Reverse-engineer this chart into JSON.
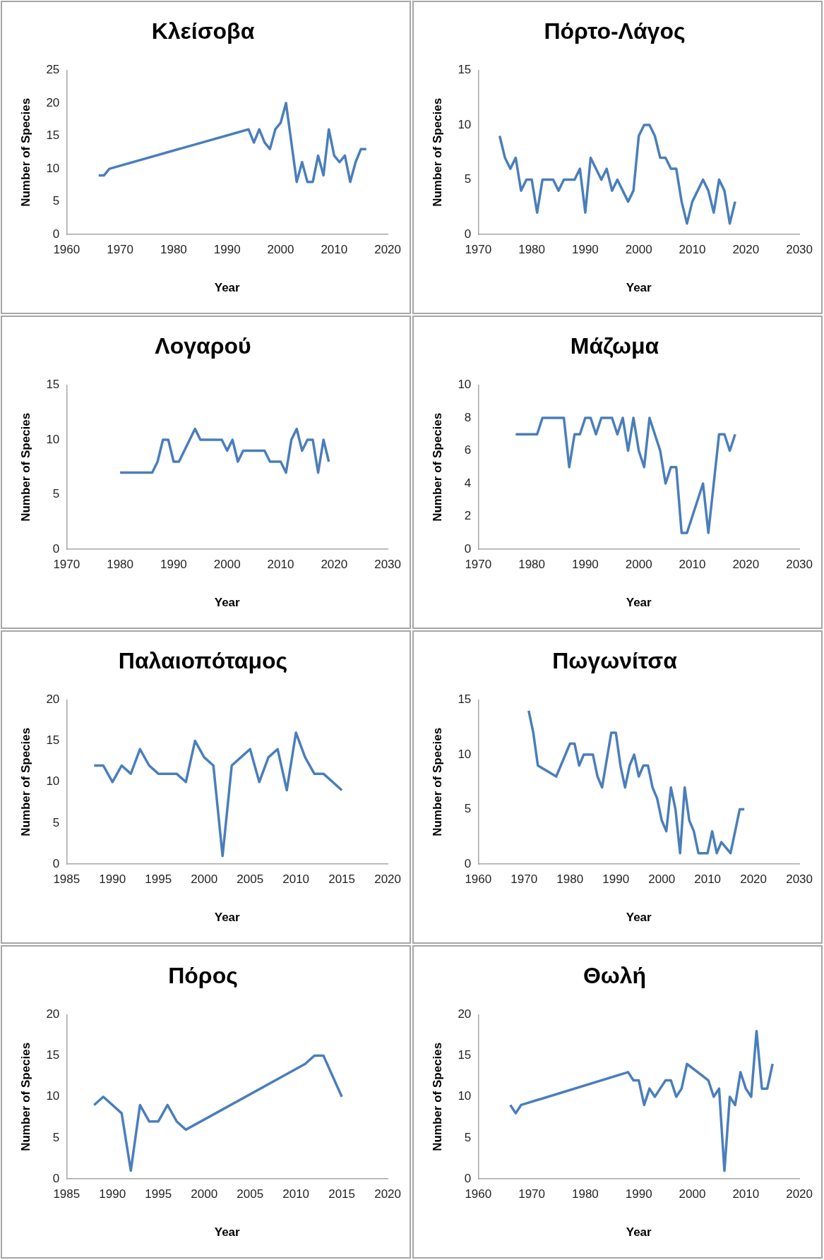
{
  "chart_data": [
    {
      "type": "line",
      "title": "Κλείσοβα",
      "xlabel": "Year",
      "ylabel": "Number of Species",
      "marker": "none",
      "xlim": [
        1960,
        2020
      ],
      "xticks": [
        1960,
        1970,
        1980,
        1990,
        2000,
        2010,
        2020
      ],
      "ylim": [
        0,
        25
      ],
      "yticks": [
        0,
        5,
        10,
        15,
        20,
        25
      ],
      "x": [
        1966,
        1967,
        1968,
        1994,
        1995,
        1996,
        1997,
        1998,
        1999,
        2000,
        2001,
        2003,
        2004,
        2005,
        2006,
        2007,
        2008,
        2009,
        2010,
        2011,
        2012,
        2013,
        2014,
        2015,
        2016
      ],
      "series": [
        {
          "color": "#4a7ebb",
          "values": [
            9,
            9,
            10,
            16,
            14,
            16,
            14,
            13,
            16,
            17,
            20,
            8,
            11,
            8,
            8,
            12,
            9,
            16,
            12,
            11,
            12,
            8,
            11,
            13,
            13
          ]
        }
      ]
    },
    {
      "type": "line",
      "title": "Πόρτο-Λάγος",
      "xlabel": "Year",
      "ylabel": "Number of Species",
      "marker": "none",
      "xlim": [
        1970,
        2030
      ],
      "xticks": [
        1970,
        1980,
        1990,
        2000,
        2010,
        2020,
        2030
      ],
      "ylim": [
        0,
        15
      ],
      "yticks": [
        0,
        5,
        10,
        15
      ],
      "x": [
        1974,
        1975,
        1976,
        1977,
        1978,
        1979,
        1980,
        1981,
        1982,
        1983,
        1984,
        1985,
        1986,
        1987,
        1988,
        1989,
        1990,
        1991,
        1992,
        1993,
        1994,
        1995,
        1996,
        1997,
        1998,
        1999,
        2000,
        2001,
        2002,
        2003,
        2004,
        2005,
        2006,
        2007,
        2008,
        2009,
        2010,
        2011,
        2012,
        2013,
        2014,
        2015,
        2016,
        2017,
        2018
      ],
      "series": [
        {
          "color": "#4a7ebb",
          "values": [
            9,
            7,
            6,
            7,
            4,
            5,
            5,
            2,
            5,
            5,
            5,
            4,
            5,
            5,
            5,
            6,
            2,
            7,
            6,
            5,
            6,
            4,
            5,
            4,
            3,
            4,
            9,
            10,
            10,
            9,
            7,
            7,
            6,
            6,
            3,
            1,
            3,
            4,
            5,
            4,
            2,
            5,
            4,
            1,
            3
          ]
        }
      ]
    },
    {
      "type": "line",
      "title": "Λογαρού",
      "xlabel": "Year",
      "ylabel": "Number of Species",
      "marker": "none",
      "xlim": [
        1970,
        2030
      ],
      "xticks": [
        1970,
        1980,
        1990,
        2000,
        2010,
        2020,
        2030
      ],
      "ylim": [
        0,
        15
      ],
      "yticks": [
        0,
        5,
        10,
        15
      ],
      "x": [
        1980,
        1986,
        1987,
        1988,
        1989,
        1990,
        1991,
        1992,
        1993,
        1994,
        1995,
        1999,
        2000,
        2001,
        2002,
        2003,
        2007,
        2008,
        2010,
        2011,
        2012,
        2013,
        2014,
        2015,
        2016,
        2017,
        2018,
        2019
      ],
      "series": [
        {
          "color": "#4a7ebb",
          "values": [
            7,
            7,
            8,
            10,
            10,
            8,
            8,
            9,
            10,
            11,
            10,
            10,
            9,
            10,
            8,
            9,
            9,
            8,
            8,
            7,
            10,
            11,
            9,
            10,
            10,
            7,
            10,
            8
          ]
        }
      ]
    },
    {
      "type": "line",
      "title": "Μάζωμα",
      "xlabel": "Year",
      "ylabel": "Number of Species",
      "marker": "none",
      "xlim": [
        1970,
        2030
      ],
      "xticks": [
        1970,
        1980,
        1990,
        2000,
        2010,
        2020,
        2030
      ],
      "ylim": [
        0,
        10
      ],
      "yticks": [
        0,
        2,
        4,
        6,
        8,
        10
      ],
      "x": [
        1977,
        1981,
        1982,
        1986,
        1987,
        1988,
        1989,
        1990,
        1991,
        1992,
        1993,
        1995,
        1996,
        1997,
        1998,
        1999,
        2000,
        2001,
        2002,
        2003,
        2004,
        2005,
        2006,
        2007,
        2008,
        2009,
        2012,
        2013,
        2014,
        2015,
        2016,
        2017,
        2018
      ],
      "series": [
        {
          "color": "#4a7ebb",
          "values": [
            7,
            7,
            8,
            8,
            5,
            7,
            7,
            8,
            8,
            7,
            8,
            8,
            7,
            8,
            6,
            8,
            6,
            5,
            8,
            7,
            6,
            4,
            5,
            5,
            1,
            1,
            4,
            1,
            4,
            7,
            7,
            6,
            7
          ]
        }
      ]
    },
    {
      "type": "line",
      "title": "Παλαιοπόταμος",
      "xlabel": "Year",
      "ylabel": "Number of Species",
      "marker": "none",
      "xlim": [
        1985,
        2020
      ],
      "xticks": [
        1985,
        1990,
        1995,
        2000,
        2005,
        2010,
        2015,
        2020
      ],
      "ylim": [
        0,
        20
      ],
      "yticks": [
        0,
        5,
        10,
        15,
        20
      ],
      "x": [
        1988,
        1989,
        1990,
        1991,
        1992,
        1993,
        1994,
        1995,
        1997,
        1998,
        1999,
        2000,
        2001,
        2002,
        2003,
        2004,
        2005,
        2006,
        2007,
        2008,
        2009,
        2010,
        2011,
        2012,
        2013,
        2015
      ],
      "series": [
        {
          "color": "#4a7ebb",
          "values": [
            12,
            12,
            10,
            12,
            11,
            14,
            12,
            11,
            11,
            10,
            15,
            13,
            12,
            1,
            12,
            13,
            14,
            10,
            13,
            14,
            9,
            16,
            13,
            11,
            11,
            9
          ]
        }
      ]
    },
    {
      "type": "line",
      "title": "Πωγωνίτσα",
      "xlabel": "Year",
      "ylabel": "Number of Species",
      "marker": "none",
      "xlim": [
        1960,
        2030
      ],
      "xticks": [
        1960,
        1970,
        1980,
        1990,
        2000,
        2010,
        2020,
        2030
      ],
      "ylim": [
        0,
        15
      ],
      "yticks": [
        0,
        5,
        10,
        15
      ],
      "x": [
        1971,
        1972,
        1973,
        1977,
        1979,
        1980,
        1981,
        1982,
        1983,
        1985,
        1986,
        1987,
        1989,
        1990,
        1991,
        1992,
        1993,
        1994,
        1995,
        1996,
        1997,
        1998,
        1999,
        2000,
        2001,
        2002,
        2003,
        2004,
        2005,
        2006,
        2007,
        2008,
        2010,
        2011,
        2012,
        2013,
        2015,
        2016,
        2017,
        2018
      ],
      "series": [
        {
          "color": "#4a7ebb",
          "values": [
            14,
            12,
            9,
            8,
            10,
            11,
            11,
            9,
            10,
            10,
            8,
            7,
            12,
            12,
            9,
            7,
            9,
            10,
            8,
            9,
            9,
            7,
            6,
            4,
            3,
            7,
            5,
            1,
            7,
            4,
            3,
            1,
            1,
            3,
            1,
            2,
            1,
            3,
            5,
            5
          ]
        }
      ]
    },
    {
      "type": "line",
      "title": "Πόρος",
      "xlabel": "Year",
      "ylabel": "Number of Species",
      "marker": "none",
      "xlim": [
        1985,
        2020
      ],
      "xticks": [
        1985,
        1990,
        1995,
        2000,
        2005,
        2010,
        2015,
        2020
      ],
      "ylim": [
        0,
        20
      ],
      "yticks": [
        0,
        5,
        10,
        15,
        20
      ],
      "x": [
        1988,
        1989,
        1991,
        1992,
        1993,
        1994,
        1995,
        1996,
        1997,
        1998,
        2011,
        2012,
        2013,
        2015
      ],
      "series": [
        {
          "color": "#4a7ebb",
          "values": [
            9,
            10,
            8,
            1,
            9,
            7,
            7,
            9,
            7,
            6,
            14,
            15,
            15,
            10
          ]
        }
      ]
    },
    {
      "type": "line",
      "title": "Θωλή",
      "xlabel": "Year",
      "ylabel": "Number of Species",
      "marker": "none",
      "xlim": [
        1960,
        2020
      ],
      "xticks": [
        1960,
        1970,
        1980,
        1990,
        2000,
        2010,
        2020
      ],
      "ylim": [
        0,
        20
      ],
      "yticks": [
        0,
        5,
        10,
        15,
        20
      ],
      "x": [
        1966,
        1967,
        1968,
        1988,
        1989,
        1990,
        1991,
        1992,
        1993,
        1994,
        1995,
        1996,
        1997,
        1998,
        1999,
        2003,
        2004,
        2005,
        2006,
        2007,
        2008,
        2009,
        2010,
        2011,
        2012,
        2013,
        2014,
        2015
      ],
      "series": [
        {
          "color": "#4a7ebb",
          "values": [
            9,
            8,
            9,
            13,
            12,
            12,
            9,
            11,
            10,
            11,
            12,
            12,
            10,
            11,
            14,
            12,
            10,
            11,
            1,
            10,
            9,
            13,
            11,
            10,
            18,
            11,
            11,
            14
          ]
        }
      ]
    }
  ]
}
